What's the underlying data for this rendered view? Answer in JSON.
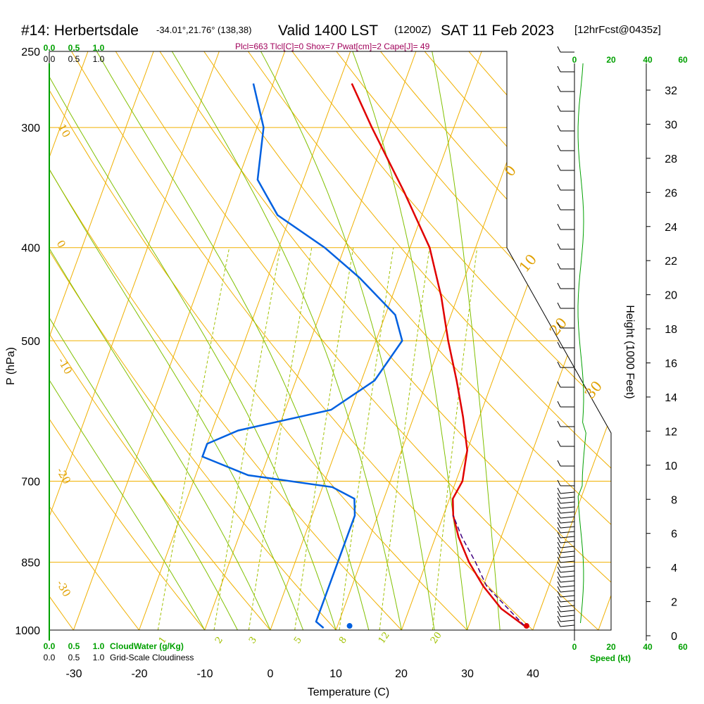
{
  "header": {
    "title": "#14: Herbertsdale",
    "coords": "-34.01°,21.76° (138,38)",
    "valid": "Valid 1400 LST",
    "utc": "(1200Z)",
    "date": "SAT 11 Feb 2023",
    "forecast": "[12hrFcst@0435z]"
  },
  "stats_line": "Plcl=663 Tlcl[C]=0 Shox=7 Pwat[cm]=2 Cape[J]= 49",
  "colors": {
    "temperature": "#e00000",
    "dewpoint": "#0060e0",
    "isobar": "#f0b000",
    "dry_adiabat": "#f0b000",
    "moist_adiabat": "#80c000",
    "mixing_ratio": "#a0c000",
    "cloud_water": "#00a000",
    "parcel": "#400080"
  },
  "chart_data": {
    "type": "line",
    "title": "#14: Herbertsdale",
    "xlabel": "Temperature (C)",
    "ylabel": "P (hPa)",
    "right_axis_label": "Height (1000 Feet)",
    "x_ticks": [
      "-30",
      "-20",
      "-10",
      "0",
      "10",
      "20",
      "30",
      "40"
    ],
    "y_ticks": [
      "250",
      "300",
      "400",
      "500",
      "700",
      "850",
      "1000"
    ],
    "height_ticks": [
      "0",
      "2",
      "4",
      "6",
      "8",
      "10",
      "12",
      "14",
      "16",
      "18",
      "20",
      "22",
      "24",
      "26",
      "28",
      "30",
      "32"
    ],
    "cloud_top_ticks": [
      "0.0",
      "0.5",
      "1.0"
    ],
    "cloud_top_ticks_black": [
      "0.0",
      "0.5",
      "1.0"
    ],
    "speed_ticks_top": [
      "0",
      "20",
      "40",
      "60"
    ],
    "speed_ticks_bottom": [
      "0",
      "20",
      "40",
      "60"
    ],
    "bottom_cloud_ticks": [
      "0.0",
      "0.5",
      "1.0"
    ],
    "bottom_legend_cloudwater": "CloudWater (g/Kg)",
    "bottom_legend_cloudiness": "Grid-Scale Cloudiness",
    "bottom_speed_label": "Speed (kt)",
    "isotherm_labels": [
      "-10",
      "0",
      "10",
      "20",
      "30"
    ],
    "dry_adiabat_labels": [
      "10",
      "0",
      "-10",
      "-20",
      "-30"
    ],
    "mixing_ratio_labels": [
      "1",
      "2",
      "3",
      "5",
      "8",
      "12",
      "20"
    ],
    "series": [
      {
        "name": "Temperature",
        "points": [
          {
            "p": 990,
            "t": 38.5
          },
          {
            "p": 950,
            "t": 34.0
          },
          {
            "p": 900,
            "t": 30.0
          },
          {
            "p": 850,
            "t": 26.5
          },
          {
            "p": 800,
            "t": 23.5
          },
          {
            "p": 760,
            "t": 21.5
          },
          {
            "p": 730,
            "t": 20.5
          },
          {
            "p": 700,
            "t": 21.0
          },
          {
            "p": 650,
            "t": 20.0
          },
          {
            "p": 600,
            "t": 17.5
          },
          {
            "p": 550,
            "t": 14.5
          },
          {
            "p": 500,
            "t": 11.0
          },
          {
            "p": 450,
            "t": 7.5
          },
          {
            "p": 400,
            "t": 3.0
          },
          {
            "p": 350,
            "t": -4.0
          },
          {
            "p": 300,
            "t": -12.5
          },
          {
            "p": 270,
            "t": -18.0
          }
        ]
      },
      {
        "name": "Dewpoint",
        "points": [
          {
            "p": 995,
            "t": 8.0
          },
          {
            "p": 980,
            "t": 6.5
          },
          {
            "p": 950,
            "t": 6.5
          },
          {
            "p": 900,
            "t": 6.5
          },
          {
            "p": 850,
            "t": 6.5
          },
          {
            "p": 800,
            "t": 6.5
          },
          {
            "p": 760,
            "t": 6.5
          },
          {
            "p": 730,
            "t": 5.5
          },
          {
            "p": 710,
            "t": 1.5
          },
          {
            "p": 690,
            "t": -12.0
          },
          {
            "p": 660,
            "t": -20.0
          },
          {
            "p": 640,
            "t": -20.0
          },
          {
            "p": 620,
            "t": -16.0
          },
          {
            "p": 590,
            "t": -3.0
          },
          {
            "p": 550,
            "t": 2.0
          },
          {
            "p": 500,
            "t": 4.0
          },
          {
            "p": 470,
            "t": 1.5
          },
          {
            "p": 430,
            "t": -6.0
          },
          {
            "p": 400,
            "t": -13.0
          },
          {
            "p": 370,
            "t": -22.0
          },
          {
            "p": 340,
            "t": -27.0
          },
          {
            "p": 300,
            "t": -29.0
          },
          {
            "p": 270,
            "t": -33.0
          }
        ]
      },
      {
        "name": "Parcel",
        "points": [
          {
            "p": 990,
            "t": 38.5
          },
          {
            "p": 900,
            "t": 30.5
          },
          {
            "p": 850,
            "t": 27.5
          },
          {
            "p": 800,
            "t": 24.0
          },
          {
            "p": 760,
            "t": 21.5
          }
        ]
      }
    ],
    "surface_temperature": 38.5,
    "surface_dewpoint": 14.0,
    "ylim": [
      250,
      1000
    ],
    "xlim": [
      -30,
      40
    ]
  }
}
